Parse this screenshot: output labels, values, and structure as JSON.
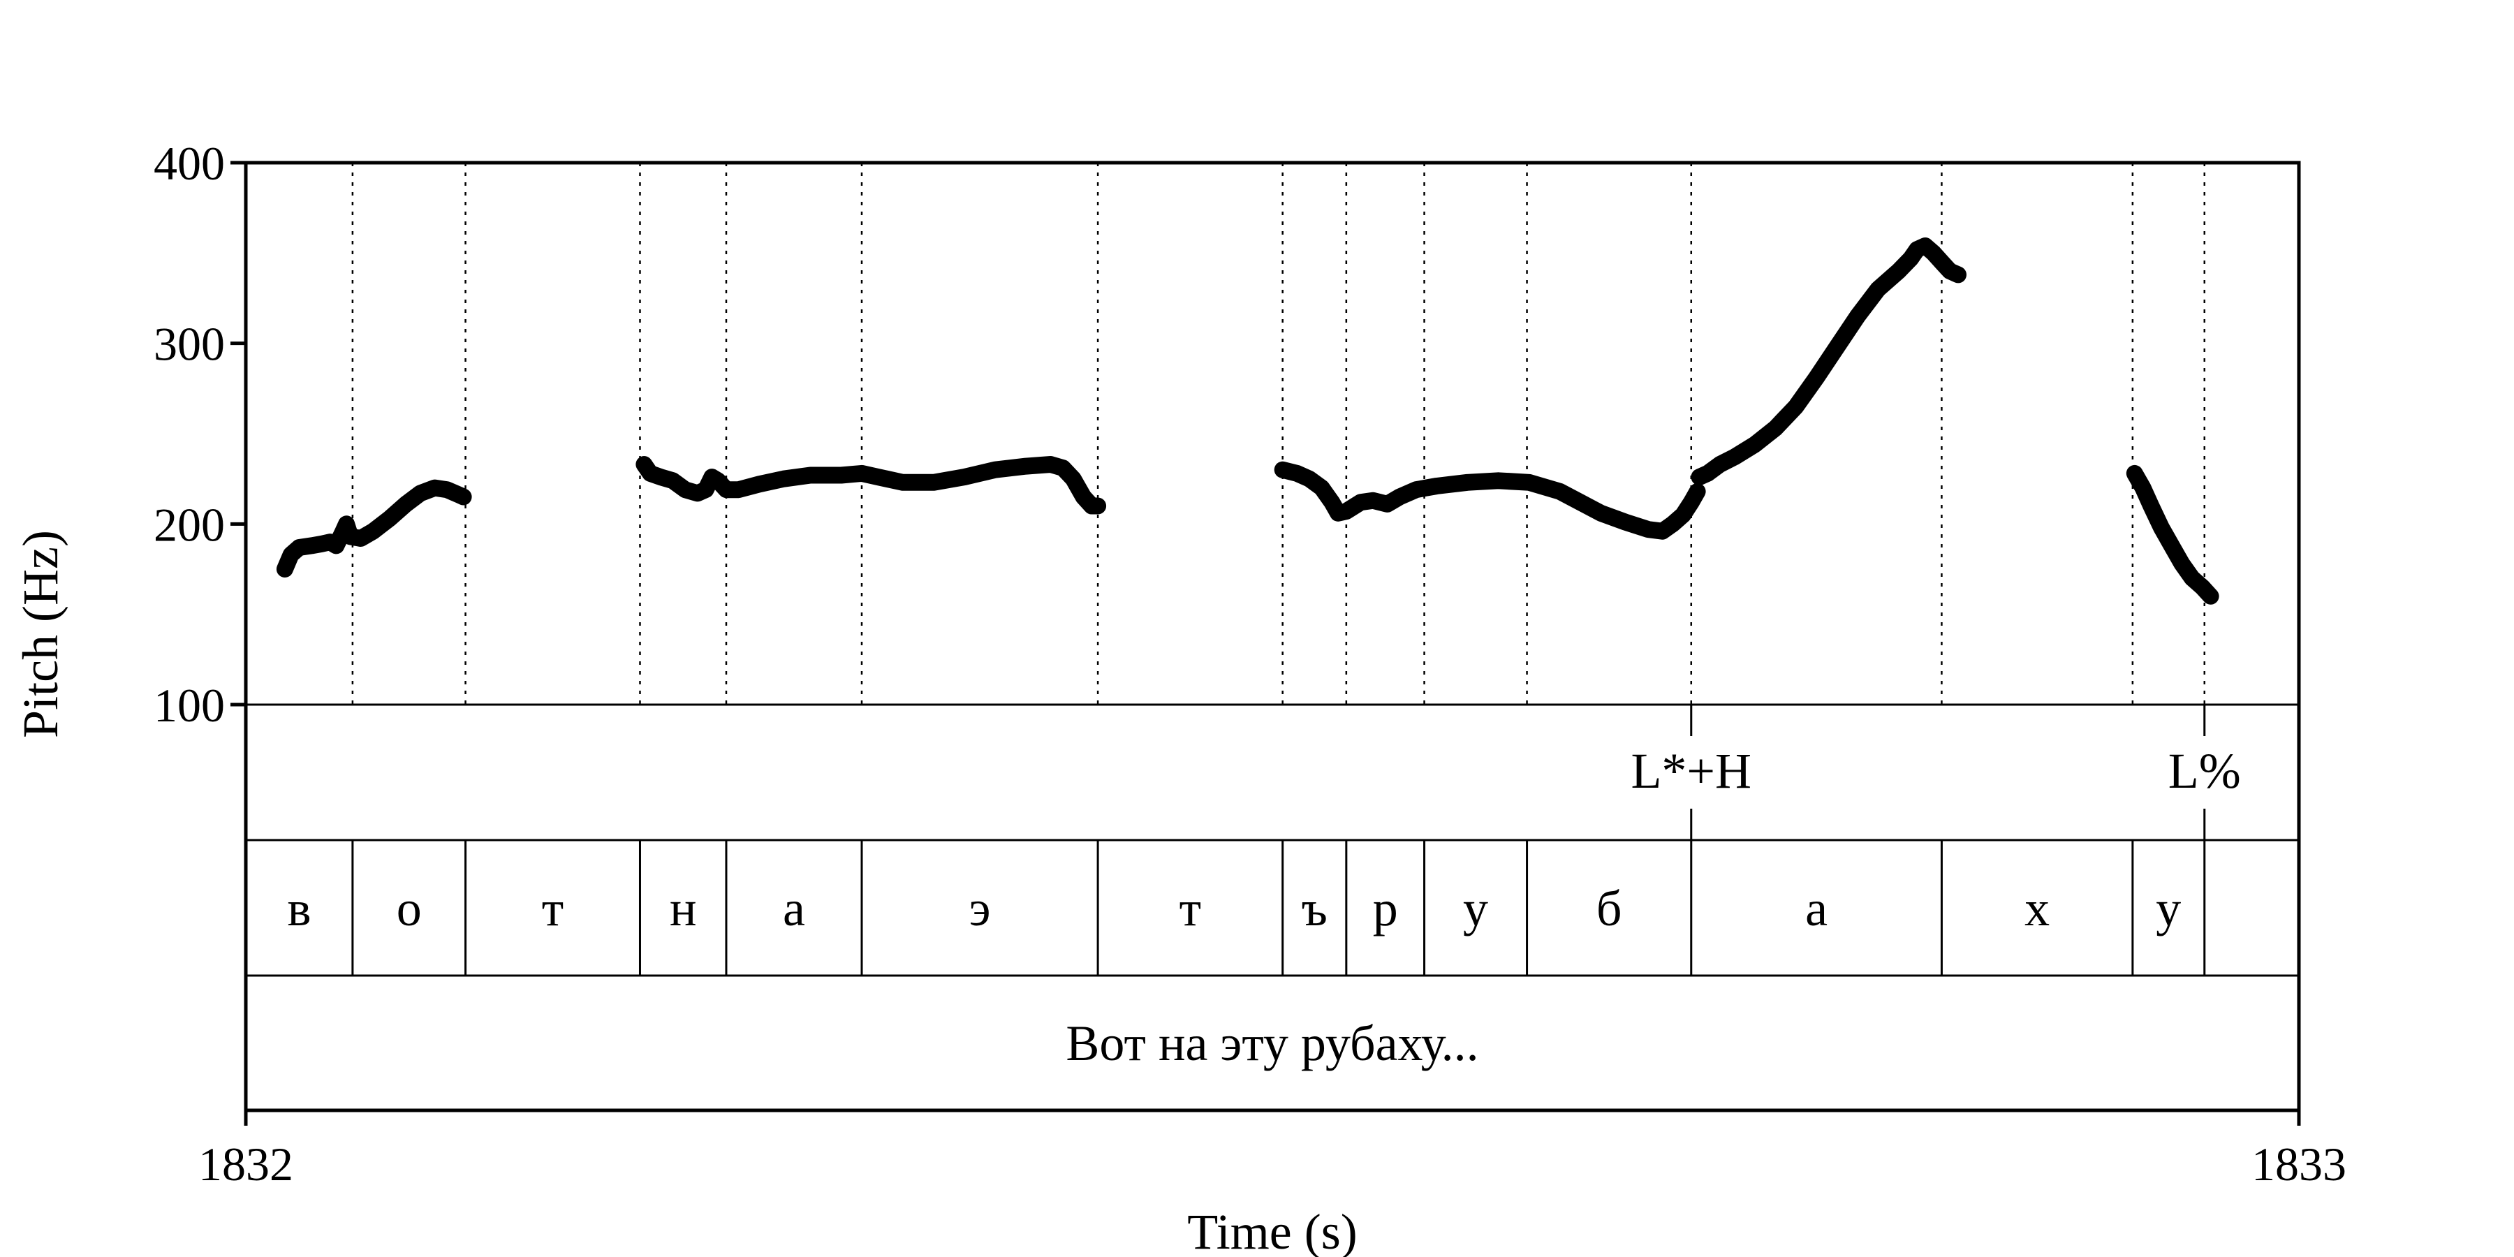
{
  "chart_data": {
    "type": "line",
    "xlabel": "Time (s)",
    "ylabel": "Pitch (Hz)",
    "xlim": [
      1832,
      1833
    ],
    "ylim": [
      100,
      400
    ],
    "x_ticks": [
      {
        "value": 1832,
        "label": "1832"
      },
      {
        "value": 1833,
        "label": "1833"
      }
    ],
    "y_ticks": [
      {
        "value": 100,
        "label": "100"
      },
      {
        "value": 200,
        "label": "200"
      },
      {
        "value": 300,
        "label": "300"
      },
      {
        "value": 400,
        "label": "400"
      }
    ],
    "boundaries": [
      1832.052,
      1832.107,
      1832.192,
      1832.234,
      1832.3,
      1832.415,
      1832.505,
      1832.536,
      1832.574,
      1832.624,
      1832.704,
      1832.826,
      1832.919,
      1832.954
    ],
    "segments": [
      {
        "label": "в",
        "start": 1832.0,
        "end": 1832.052
      },
      {
        "label": "о",
        "start": 1832.052,
        "end": 1832.107
      },
      {
        "label": "т",
        "start": 1832.107,
        "end": 1832.192
      },
      {
        "label": "н",
        "start": 1832.192,
        "end": 1832.234
      },
      {
        "label": "а",
        "start": 1832.234,
        "end": 1832.3
      },
      {
        "label": "э",
        "start": 1832.3,
        "end": 1832.415
      },
      {
        "label": "т",
        "start": 1832.415,
        "end": 1832.505
      },
      {
        "label": "ъ",
        "start": 1832.505,
        "end": 1832.536
      },
      {
        "label": "р",
        "start": 1832.536,
        "end": 1832.574
      },
      {
        "label": "у",
        "start": 1832.574,
        "end": 1832.624
      },
      {
        "label": "б",
        "start": 1832.624,
        "end": 1832.704
      },
      {
        "label": "а",
        "start": 1832.704,
        "end": 1832.826
      },
      {
        "label": "х",
        "start": 1832.826,
        "end": 1832.919
      },
      {
        "label": "у",
        "start": 1832.919,
        "end": 1832.954
      },
      {
        "label": "",
        "start": 1832.954,
        "end": 1833.0
      }
    ],
    "tones": [
      {
        "label": "L*+H",
        "time": 1832.704
      },
      {
        "label": "L%",
        "time": 1832.954
      }
    ],
    "utterance": "Вот на эту рубаху...",
    "series": [
      {
        "values": [
          [
            [
              1832.019,
              175
            ],
            [
              1832.022,
              183
            ],
            [
              1832.026,
              187
            ],
            [
              1832.032,
              188
            ],
            [
              1832.037,
              189
            ],
            [
              1832.041,
              190
            ],
            [
              1832.044,
              188
            ],
            [
              1832.047,
              195
            ],
            [
              1832.049,
              200
            ],
            [
              1832.051,
              193
            ],
            [
              1832.056,
              192
            ],
            [
              1832.062,
              196
            ],
            [
              1832.07,
              203
            ],
            [
              1832.078,
              211
            ],
            [
              1832.085,
              217
            ],
            [
              1832.092,
              220
            ],
            [
              1832.098,
              219
            ],
            [
              1832.104,
              216
            ],
            [
              1832.106,
              215
            ]
          ],
          [
            [
              1832.194,
              233
            ],
            [
              1832.197,
              228
            ],
            [
              1832.202,
              226
            ],
            [
              1832.208,
              224
            ],
            [
              1832.214,
              219
            ],
            [
              1832.22,
              217
            ],
            [
              1832.224,
              219
            ],
            [
              1832.227,
              226
            ],
            [
              1832.23,
              224
            ],
            [
              1832.234,
              219
            ],
            [
              1832.24,
              219
            ],
            [
              1832.25,
              222
            ],
            [
              1832.262,
              225
            ],
            [
              1832.275,
              227
            ],
            [
              1832.29,
              227
            ],
            [
              1832.3,
              228
            ],
            [
              1832.308,
              226
            ],
            [
              1832.32,
              223
            ],
            [
              1832.335,
              223
            ],
            [
              1832.35,
              226
            ],
            [
              1832.365,
              230
            ],
            [
              1832.38,
              232
            ],
            [
              1832.392,
              233
            ],
            [
              1832.398,
              231
            ],
            [
              1832.403,
              225
            ],
            [
              1832.408,
              215
            ],
            [
              1832.412,
              210
            ],
            [
              1832.415,
              210
            ]
          ],
          [
            [
              1832.505,
              230
            ],
            [
              1832.512,
              228
            ],
            [
              1832.518,
              225
            ],
            [
              1832.524,
              220
            ],
            [
              1832.529,
              212
            ],
            [
              1832.532,
              206
            ],
            [
              1832.536,
              207
            ],
            [
              1832.543,
              212
            ],
            [
              1832.549,
              213
            ],
            [
              1832.556,
              211
            ],
            [
              1832.562,
              215
            ],
            [
              1832.57,
              219
            ],
            [
              1832.58,
              221
            ],
            [
              1832.595,
              223
            ],
            [
              1832.61,
              224
            ],
            [
              1832.625,
              223
            ],
            [
              1832.64,
              218
            ],
            [
              1832.65,
              212
            ],
            [
              1832.66,
              206
            ],
            [
              1832.672,
              201
            ],
            [
              1832.683,
              197
            ],
            [
              1832.69,
              196
            ],
            [
              1832.695,
              200
            ],
            [
              1832.7,
              205
            ],
            [
              1832.704,
              212
            ],
            [
              1832.707,
              218
            ]
          ],
          [
            [
              1832.708,
              226
            ],
            [
              1832.712,
              228
            ],
            [
              1832.718,
              233
            ],
            [
              1832.725,
              237
            ],
            [
              1832.735,
              244
            ],
            [
              1832.745,
              253
            ],
            [
              1832.755,
              265
            ],
            [
              1832.765,
              281
            ],
            [
              1832.775,
              298
            ],
            [
              1832.785,
              315
            ],
            [
              1832.795,
              330
            ],
            [
              1832.805,
              340
            ],
            [
              1832.811,
              347
            ],
            [
              1832.814,
              352
            ],
            [
              1832.818,
              354
            ],
            [
              1832.822,
              350
            ],
            [
              1832.826,
              345
            ],
            [
              1832.83,
              340
            ],
            [
              1832.834,
              338
            ]
          ],
          [
            [
              1832.92,
              228
            ],
            [
              1832.924,
              220
            ],
            [
              1832.928,
              210
            ],
            [
              1832.933,
              198
            ],
            [
              1832.938,
              188
            ],
            [
              1832.943,
              178
            ],
            [
              1832.948,
              170
            ],
            [
              1832.953,
              165
            ],
            [
              1832.957,
              160
            ]
          ]
        ]
      }
    ]
  }
}
